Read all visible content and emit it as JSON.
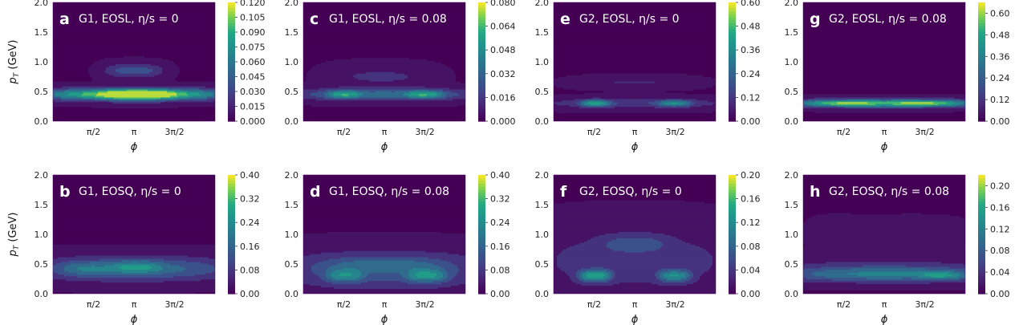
{
  "chart_data": [
    {
      "type": "heatmap",
      "panel": "a",
      "title": "G1,  EOSL, η/s = 0",
      "ylabel": "p_T (GeV)",
      "xlabel": "ϕ",
      "xticks": [
        "π/2",
        "π",
        "3π/2"
      ],
      "yticks": [
        "0.0",
        "0.5",
        "1.0",
        "1.5",
        "2.0"
      ],
      "ylim": [
        0,
        2.0
      ],
      "xlim": [
        0,
        6.283
      ],
      "colorbar": {
        "min": 0,
        "max": 0.12,
        "ticks": [
          "0.120",
          "0.105",
          "0.090",
          "0.075",
          "0.060",
          "0.045",
          "0.030",
          "0.015",
          "0.000"
        ]
      },
      "colors": {
        "background": "#440154",
        "high": "#fde725"
      },
      "blobs": [
        {
          "x": 3.14,
          "y": 0.45,
          "sx": 2.6,
          "sy": 0.07,
          "amp": 0.11
        },
        {
          "x": 3.3,
          "y": 0.45,
          "sx": 0.9,
          "sy": 0.06,
          "amp": 0.05
        },
        {
          "x": 3.14,
          "y": 0.85,
          "sx": 0.8,
          "sy": 0.08,
          "amp": 0.04
        }
      ]
    },
    {
      "type": "heatmap",
      "panel": "c",
      "title": "G1,  EOSL, η/s = 0.08",
      "ylabel": "",
      "xlabel": "ϕ",
      "xticks": [
        "π/2",
        "π",
        "3π/2"
      ],
      "yticks": [
        "0.0",
        "0.5",
        "1.0",
        "1.5",
        "2.0"
      ],
      "ylim": [
        0,
        2.0
      ],
      "xlim": [
        0,
        6.283
      ],
      "colorbar": {
        "min": 0,
        "max": 0.08,
        "ticks": [
          "0.080",
          "0.064",
          "0.048",
          "0.032",
          "0.016",
          "0.000"
        ]
      },
      "colors": {
        "background": "#440154",
        "high": "#fde725"
      },
      "blobs": [
        {
          "x": 3.14,
          "y": 0.45,
          "sx": 2.5,
          "sy": 0.07,
          "amp": 0.035
        },
        {
          "x": 1.57,
          "y": 0.45,
          "sx": 0.45,
          "sy": 0.05,
          "amp": 0.03
        },
        {
          "x": 4.71,
          "y": 0.45,
          "sx": 0.5,
          "sy": 0.05,
          "amp": 0.03
        },
        {
          "x": 3.0,
          "y": 0.75,
          "sx": 1.4,
          "sy": 0.12,
          "amp": 0.012
        }
      ]
    },
    {
      "type": "heatmap",
      "panel": "e",
      "title": "G2,  EOSL, η/s = 0",
      "ylabel": "",
      "xlabel": "ϕ",
      "xticks": [
        "π/2",
        "π",
        "3π/2"
      ],
      "yticks": [
        "0.0",
        "0.5",
        "1.0",
        "1.5",
        "2.0"
      ],
      "ylim": [
        0,
        2.0
      ],
      "xlim": [
        0,
        6.283
      ],
      "colorbar": {
        "min": 0,
        "max": 0.6,
        "ticks": [
          "0.60",
          "0.48",
          "0.36",
          "0.24",
          "0.12",
          "0.00"
        ]
      },
      "colors": {
        "background": "#440154",
        "high": "#fde725"
      },
      "blobs": [
        {
          "x": 3.14,
          "y": 0.3,
          "sx": 2.5,
          "sy": 0.06,
          "amp": 0.15
        },
        {
          "x": 1.6,
          "y": 0.3,
          "sx": 0.4,
          "sy": 0.04,
          "amp": 0.3
        },
        {
          "x": 4.7,
          "y": 0.3,
          "sx": 0.45,
          "sy": 0.04,
          "amp": 0.25
        },
        {
          "x": 3.14,
          "y": 0.65,
          "sx": 1.6,
          "sy": 0.06,
          "amp": 0.08
        }
      ]
    },
    {
      "type": "heatmap",
      "panel": "g",
      "title": "G2,  EOSL, η/s = 0.08",
      "ylabel": "",
      "xlabel": "ϕ",
      "xticks": [
        "π/2",
        "π",
        "3π/2"
      ],
      "yticks": [
        "0.0",
        "0.5",
        "1.0",
        "1.5",
        "2.0"
      ],
      "ylim": [
        0,
        2.0
      ],
      "xlim": [
        0,
        6.283
      ],
      "colorbar": {
        "min": 0,
        "max": 0.66,
        "ticks": [
          "0.60",
          "0.48",
          "0.36",
          "0.24",
          "0.12",
          "0.00"
        ]
      },
      "colors": {
        "background": "#440154",
        "high": "#fde725"
      },
      "blobs": [
        {
          "x": 3.14,
          "y": 0.3,
          "sx": 2.9,
          "sy": 0.05,
          "amp": 0.5
        },
        {
          "x": 1.6,
          "y": 0.3,
          "sx": 0.8,
          "sy": 0.03,
          "amp": 0.15
        },
        {
          "x": 4.7,
          "y": 0.3,
          "sx": 0.8,
          "sy": 0.03,
          "amp": 0.15
        }
      ]
    },
    {
      "type": "heatmap",
      "panel": "b",
      "title": "G1,  EOSQ, η/s = 0",
      "ylabel": "p_T (GeV)",
      "xlabel": "ϕ",
      "xticks": [
        "π/2",
        "π",
        "3π/2"
      ],
      "yticks": [
        "0.0",
        "0.5",
        "1.0",
        "1.5",
        "2.0"
      ],
      "ylim": [
        0,
        2.0
      ],
      "xlim": [
        0,
        6.283
      ],
      "colorbar": {
        "min": 0,
        "max": 0.4,
        "ticks": [
          "0.40",
          "0.32",
          "0.24",
          "0.16",
          "0.08",
          "0.00"
        ]
      },
      "colors": {
        "background": "#440154",
        "high": "#fde725"
      },
      "blobs": [
        {
          "x": 3.14,
          "y": 0.42,
          "sx": 2.7,
          "sy": 0.14,
          "amp": 0.18
        },
        {
          "x": 3.2,
          "y": 0.45,
          "sx": 0.7,
          "sy": 0.07,
          "amp": 0.1
        },
        {
          "x": 1.2,
          "y": 0.42,
          "sx": 0.6,
          "sy": 0.08,
          "amp": 0.06
        }
      ]
    },
    {
      "type": "heatmap",
      "panel": "d",
      "title": "G1,  EOSQ, η/s = 0.08",
      "ylabel": "",
      "xlabel": "ϕ",
      "xticks": [
        "π/2",
        "π",
        "3π/2"
      ],
      "yticks": [
        "0.0",
        "0.5",
        "1.0",
        "1.5",
        "2.0"
      ],
      "ylim": [
        0,
        2.0
      ],
      "xlim": [
        0,
        6.283
      ],
      "colorbar": {
        "min": 0,
        "max": 0.4,
        "ticks": [
          "0.40",
          "0.32",
          "0.24",
          "0.16",
          "0.08",
          "0.00"
        ]
      },
      "colors": {
        "background": "#440154",
        "high": "#fde725"
      },
      "blobs": [
        {
          "x": 3.14,
          "y": 0.4,
          "sx": 2.9,
          "sy": 0.22,
          "amp": 0.14
        },
        {
          "x": 1.6,
          "y": 0.3,
          "sx": 0.5,
          "sy": 0.08,
          "amp": 0.14
        },
        {
          "x": 4.8,
          "y": 0.3,
          "sx": 0.55,
          "sy": 0.08,
          "amp": 0.16
        },
        {
          "x": 3.14,
          "y": 0.5,
          "sx": 1.5,
          "sy": 0.08,
          "amp": 0.06
        }
      ]
    },
    {
      "type": "heatmap",
      "panel": "f",
      "title": "G2,  EOSQ, η/s = 0",
      "ylabel": "",
      "xlabel": "ϕ",
      "xticks": [
        "π/2",
        "π",
        "3π/2"
      ],
      "yticks": [
        "0.0",
        "0.5",
        "1.0",
        "1.5",
        "2.0"
      ],
      "ylim": [
        0,
        2.0
      ],
      "xlim": [
        0,
        6.283
      ],
      "colorbar": {
        "min": 0,
        "max": 0.2,
        "ticks": [
          "0.20",
          "0.16",
          "0.12",
          "0.08",
          "0.04",
          "0.00"
        ]
      },
      "colors": {
        "background": "#440154",
        "high": "#fde725"
      },
      "blobs": [
        {
          "x": 3.14,
          "y": 0.55,
          "sx": 2.8,
          "sy": 0.38,
          "amp": 0.04
        },
        {
          "x": 1.6,
          "y": 0.3,
          "sx": 0.45,
          "sy": 0.07,
          "amp": 0.12
        },
        {
          "x": 4.7,
          "y": 0.3,
          "sx": 0.45,
          "sy": 0.07,
          "amp": 0.1
        },
        {
          "x": 3.14,
          "y": 0.85,
          "sx": 0.9,
          "sy": 0.1,
          "amp": 0.04
        }
      ]
    },
    {
      "type": "heatmap",
      "panel": "h",
      "title": "G2,  EOSQ, η/s = 0.08",
      "ylabel": "",
      "xlabel": "ϕ",
      "xticks": [
        "π/2",
        "π",
        "3π/2"
      ],
      "yticks": [
        "0.0",
        "0.5",
        "1.0",
        "1.5",
        "2.0"
      ],
      "ylim": [
        0,
        2.0
      ],
      "xlim": [
        0,
        6.283
      ],
      "colorbar": {
        "min": 0,
        "max": 0.22,
        "ticks": [
          "0.20",
          "0.16",
          "0.12",
          "0.08",
          "0.04",
          "0.00"
        ]
      },
      "colors": {
        "background": "#440154",
        "high": "#fde725"
      },
      "blobs": [
        {
          "x": 3.14,
          "y": 0.32,
          "sx": 2.9,
          "sy": 0.09,
          "amp": 0.1
        },
        {
          "x": 5.4,
          "y": 0.3,
          "sx": 0.6,
          "sy": 0.05,
          "amp": 0.06
        },
        {
          "x": 3.14,
          "y": 0.45,
          "sx": 2.8,
          "sy": 0.12,
          "amp": 0.03
        },
        {
          "x": 1.2,
          "y": 1.02,
          "sx": 0.7,
          "sy": 0.15,
          "amp": 0.012
        },
        {
          "x": 4.2,
          "y": 1.02,
          "sx": 1.5,
          "sy": 0.15,
          "amp": 0.012
        }
      ]
    }
  ]
}
